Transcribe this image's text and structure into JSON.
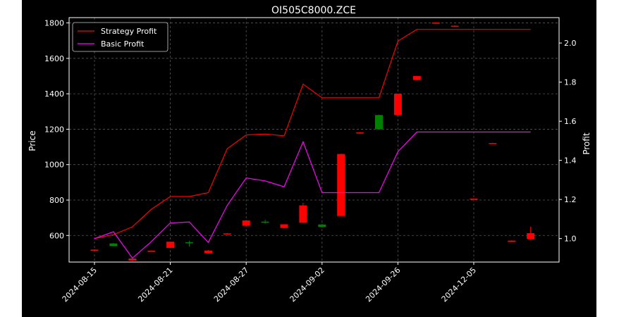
{
  "chart_data": {
    "type": "candlestick+line",
    "title": "OI505C8000.ZCE",
    "xlabel": "",
    "ylabel_left": "Price",
    "ylabel_right": "Profit",
    "ylim_left": [
      450,
      1830
    ],
    "ylim_right": [
      0.88,
      2.13
    ],
    "yticks_left": [
      600,
      800,
      1000,
      1200,
      1400,
      1600,
      1800
    ],
    "yticks_right": [
      1.0,
      1.2,
      1.4,
      1.6,
      1.8,
      2.0
    ],
    "xtick_labels": [
      "2024-08-15",
      "2024-08-21",
      "2024-08-27",
      "2024-09-02",
      "2024-09-26",
      "2024-12-05"
    ],
    "xtick_index": [
      0,
      4,
      8,
      12,
      16,
      20
    ],
    "grid": true,
    "legend_position": "upper-left",
    "background": "#000000",
    "candles": [
      {
        "o": 520,
        "c": 513,
        "h": 522,
        "l": 512
      },
      {
        "o": 540,
        "c": 555,
        "h": 557,
        "l": 538
      },
      {
        "o": 470,
        "c": 458,
        "h": 472,
        "l": 455
      },
      {
        "o": 514,
        "c": 512,
        "h": 516,
        "l": 510
      },
      {
        "o": 565,
        "c": 530,
        "h": 566,
        "l": 528
      },
      {
        "o": 558,
        "c": 562,
        "h": 570,
        "l": 538
      },
      {
        "o": 515,
        "c": 500,
        "h": 518,
        "l": 497
      },
      {
        "o": 612,
        "c": 608,
        "h": 614,
        "l": 606
      },
      {
        "o": 685,
        "c": 655,
        "h": 688,
        "l": 652
      },
      {
        "o": 672,
        "c": 678,
        "h": 690,
        "l": 666
      },
      {
        "o": 663,
        "c": 642,
        "h": 664,
        "l": 640
      },
      {
        "o": 770,
        "c": 672,
        "h": 785,
        "l": 670
      },
      {
        "o": 648,
        "c": 662,
        "h": 664,
        "l": 646
      },
      {
        "o": 1060,
        "c": 710,
        "h": 1062,
        "l": 708
      },
      {
        "o": 1182,
        "c": 1178,
        "h": 1184,
        "l": 1176
      },
      {
        "o": 1200,
        "c": 1280,
        "h": 1282,
        "l": 1198
      },
      {
        "o": 1400,
        "c": 1280,
        "h": 1402,
        "l": 1278
      },
      {
        "o": 1500,
        "c": 1478,
        "h": 1502,
        "l": 1475
      },
      {
        "o": 1802,
        "c": 1799,
        "h": 1804,
        "l": 1797
      },
      {
        "o": 1784,
        "c": 1780,
        "h": 1786,
        "l": 1778
      },
      {
        "o": 808,
        "c": 805,
        "h": 810,
        "l": 803
      },
      {
        "o": 1122,
        "c": 1119,
        "h": 1124,
        "l": 1117
      },
      {
        "o": 571,
        "c": 568,
        "h": 573,
        "l": 566
      },
      {
        "o": 613,
        "c": 580,
        "h": 650,
        "l": 575
      }
    ],
    "series": [
      {
        "name": "Strategy Profit",
        "color": "#ff0000",
        "values": [
          1.0,
          1.02,
          1.06,
          1.15,
          1.215,
          1.215,
          1.235,
          1.46,
          1.53,
          1.535,
          1.525,
          1.79,
          1.72,
          1.72,
          1.72,
          1.72,
          2.01,
          2.07,
          2.07,
          2.07,
          2.07,
          2.07,
          2.07,
          2.07
        ]
      },
      {
        "name": "Basic Profit",
        "color": "#ff00ff",
        "values": [
          1.0,
          1.035,
          0.9,
          0.985,
          1.08,
          1.085,
          0.98,
          1.17,
          1.31,
          1.295,
          1.265,
          1.495,
          1.235,
          1.235,
          1.235,
          1.235,
          1.445,
          1.545,
          1.545,
          1.545,
          1.545,
          1.545,
          1.545,
          1.545
        ]
      }
    ]
  }
}
